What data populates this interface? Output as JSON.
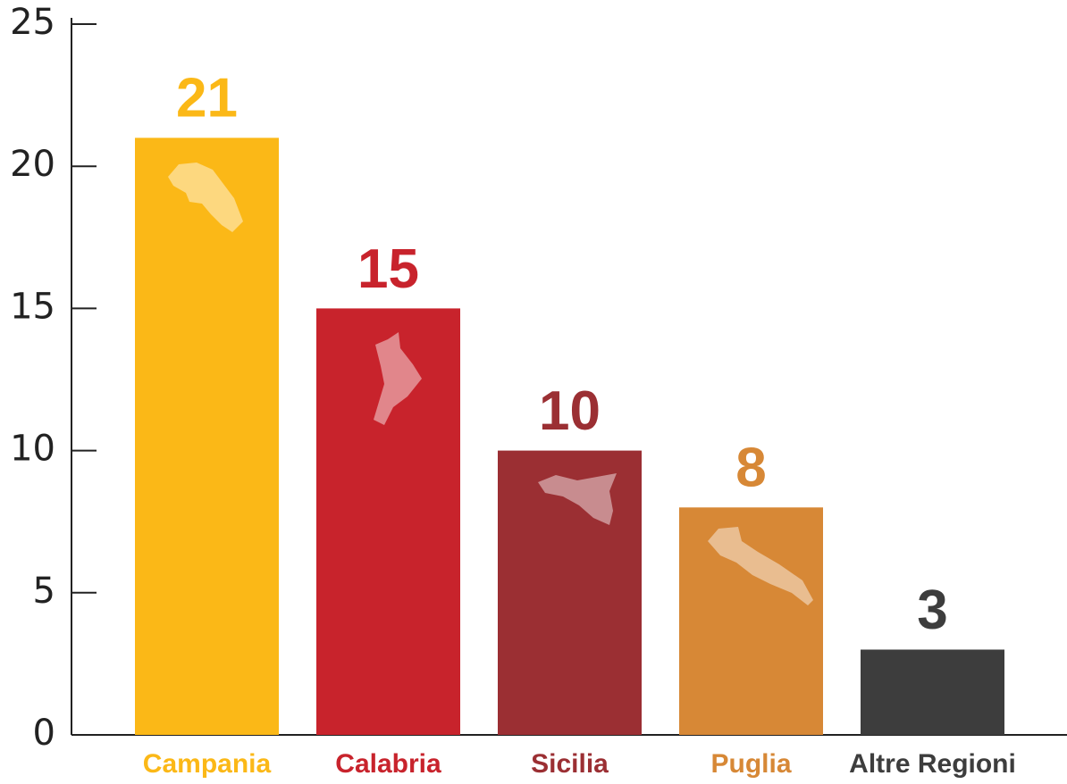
{
  "chart_data": {
    "type": "bar",
    "categories": [
      "Campania",
      "Calabria",
      "Sicilia",
      "Puglia",
      "Altre Regioni"
    ],
    "values": [
      21,
      15,
      10,
      8,
      3
    ],
    "colors": [
      "#fbb817",
      "#c8232c",
      "#9b2f33",
      "#d78836",
      "#3d3d3d"
    ],
    "ylim": [
      0,
      25
    ],
    "yticks": [
      0,
      5,
      10,
      15,
      20,
      25
    ],
    "grid": false
  }
}
